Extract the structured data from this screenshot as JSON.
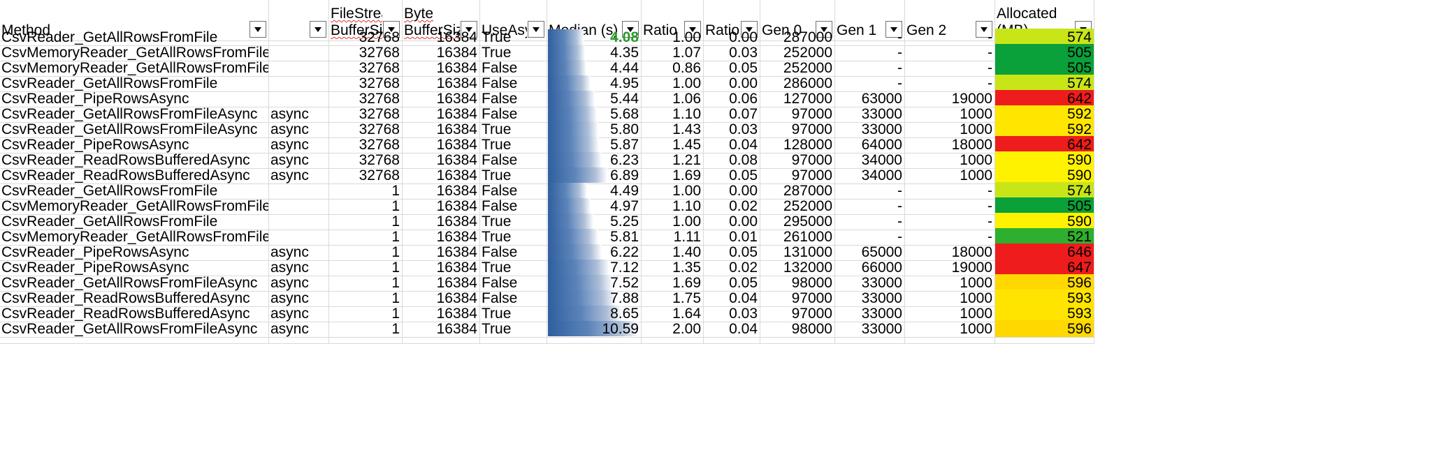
{
  "headers": [
    {
      "label": "Method"
    },
    {
      "label": ""
    },
    {
      "label": "FileStream BufferSize"
    },
    {
      "label": "Byte BufferSize"
    },
    {
      "label": "UseAsync"
    },
    {
      "label": "Median (s)"
    },
    {
      "label": "Ratio"
    },
    {
      "label": "RatioSD"
    },
    {
      "label": "Gen 0"
    },
    {
      "label": "Gen 1"
    },
    {
      "label": "Gen 2"
    },
    {
      "label": "Allocated  (MB)"
    }
  ],
  "rows": [
    {
      "method": "CsvReader_GetAllRowsFromFile",
      "kind": "",
      "fs": "32768",
      "byte": "16384",
      "useAsync": "True",
      "median": "4.08",
      "ratio": "1.00",
      "ratioSD": "0.00",
      "gen0": "287000",
      "gen1": "-",
      "gen2": "-",
      "alloc": "574",
      "allocColor": "#c8e617",
      "medianBar": 0.38,
      "medianBest": true
    },
    {
      "method": "CsvMemoryReader_GetAllRowsFromFile",
      "kind": "",
      "fs": "32768",
      "byte": "16384",
      "useAsync": "True",
      "median": "4.35",
      "ratio": "1.07",
      "ratioSD": "0.03",
      "gen0": "252000",
      "gen1": "-",
      "gen2": "-",
      "alloc": "505",
      "allocColor": "#0aa03a",
      "medianBar": 0.4
    },
    {
      "method": "CsvMemoryReader_GetAllRowsFromFile",
      "kind": "",
      "fs": "32768",
      "byte": "16384",
      "useAsync": "False",
      "median": "4.44",
      "ratio": "0.86",
      "ratioSD": "0.05",
      "gen0": "252000",
      "gen1": "-",
      "gen2": "-",
      "alloc": "505",
      "allocColor": "#0aa03a",
      "medianBar": 0.41
    },
    {
      "method": "CsvReader_GetAllRowsFromFile",
      "kind": "",
      "fs": "32768",
      "byte": "16384",
      "useAsync": "False",
      "median": "4.95",
      "ratio": "1.00",
      "ratioSD": "0.00",
      "gen0": "286000",
      "gen1": "-",
      "gen2": "-",
      "alloc": "574",
      "allocColor": "#c8e617",
      "medianBar": 0.46
    },
    {
      "method": "CsvReader_PipeRowsAsync",
      "kind": "",
      "fs": "32768",
      "byte": "16384",
      "useAsync": "False",
      "median": "5.44",
      "ratio": "1.06",
      "ratioSD": "0.06",
      "gen0": "127000",
      "gen1": "63000",
      "gen2": "19000",
      "alloc": "642",
      "allocColor": "#ee1c1c",
      "medianBar": 0.5
    },
    {
      "method": "CsvReader_GetAllRowsFromFileAsync",
      "kind": "async",
      "fs": "32768",
      "byte": "16384",
      "useAsync": "False",
      "median": "5.68",
      "ratio": "1.10",
      "ratioSD": "0.07",
      "gen0": "97000",
      "gen1": "33000",
      "gen2": "1000",
      "alloc": "592",
      "allocColor": "#ffe600",
      "medianBar": 0.53
    },
    {
      "method": "CsvReader_GetAllRowsFromFileAsync",
      "kind": "async",
      "fs": "32768",
      "byte": "16384",
      "useAsync": "True",
      "median": "5.80",
      "ratio": "1.43",
      "ratioSD": "0.03",
      "gen0": "97000",
      "gen1": "33000",
      "gen2": "1000",
      "alloc": "592",
      "allocColor": "#ffe600",
      "medianBar": 0.54
    },
    {
      "method": "CsvReader_PipeRowsAsync",
      "kind": "async",
      "fs": "32768",
      "byte": "16384",
      "useAsync": "True",
      "median": "5.87",
      "ratio": "1.45",
      "ratioSD": "0.04",
      "gen0": "128000",
      "gen1": "64000",
      "gen2": "18000",
      "alloc": "642",
      "allocColor": "#ee1c1c",
      "medianBar": 0.55
    },
    {
      "method": "CsvReader_ReadRowsBufferedAsync",
      "kind": "async",
      "fs": "32768",
      "byte": "16384",
      "useAsync": "False",
      "median": "6.23",
      "ratio": "1.21",
      "ratioSD": "0.08",
      "gen0": "97000",
      "gen1": "34000",
      "gen2": "1000",
      "alloc": "590",
      "allocColor": "#fff200",
      "medianBar": 0.58
    },
    {
      "method": "CsvReader_ReadRowsBufferedAsync",
      "kind": "async",
      "fs": "32768",
      "byte": "16384",
      "useAsync": "True",
      "median": "6.89",
      "ratio": "1.69",
      "ratioSD": "0.05",
      "gen0": "97000",
      "gen1": "34000",
      "gen2": "1000",
      "alloc": "590",
      "allocColor": "#fff200",
      "medianBar": 0.64
    },
    {
      "method": "CsvReader_GetAllRowsFromFile",
      "kind": "",
      "fs": "1",
      "byte": "16384",
      "useAsync": "False",
      "median": "4.49",
      "ratio": "1.00",
      "ratioSD": "0.00",
      "gen0": "287000",
      "gen1": "-",
      "gen2": "-",
      "alloc": "574",
      "allocColor": "#c8e617",
      "medianBar": 0.42
    },
    {
      "method": "CsvMemoryReader_GetAllRowsFromFile",
      "kind": "",
      "fs": "1",
      "byte": "16384",
      "useAsync": "False",
      "median": "4.97",
      "ratio": "1.10",
      "ratioSD": "0.02",
      "gen0": "252000",
      "gen1": "-",
      "gen2": "-",
      "alloc": "505",
      "allocColor": "#0aa03a",
      "medianBar": 0.46
    },
    {
      "method": "CsvReader_GetAllRowsFromFile",
      "kind": "",
      "fs": "1",
      "byte": "16384",
      "useAsync": "True",
      "median": "5.25",
      "ratio": "1.00",
      "ratioSD": "0.00",
      "gen0": "295000",
      "gen1": "-",
      "gen2": "-",
      "alloc": "590",
      "allocColor": "#fff200",
      "medianBar": 0.49
    },
    {
      "method": "CsvMemoryReader_GetAllRowsFromFile",
      "kind": "",
      "fs": "1",
      "byte": "16384",
      "useAsync": "True",
      "median": "5.81",
      "ratio": "1.11",
      "ratioSD": "0.01",
      "gen0": "261000",
      "gen1": "-",
      "gen2": "-",
      "alloc": "521",
      "allocColor": "#2faf2f",
      "medianBar": 0.54
    },
    {
      "method": "CsvReader_PipeRowsAsync",
      "kind": "async",
      "fs": "1",
      "byte": "16384",
      "useAsync": "False",
      "median": "6.22",
      "ratio": "1.40",
      "ratioSD": "0.05",
      "gen0": "131000",
      "gen1": "65000",
      "gen2": "18000",
      "alloc": "646",
      "allocColor": "#ee1c1c",
      "medianBar": 0.58
    },
    {
      "method": "CsvReader_PipeRowsAsync",
      "kind": "async",
      "fs": "1",
      "byte": "16384",
      "useAsync": "True",
      "median": "7.12",
      "ratio": "1.35",
      "ratioSD": "0.02",
      "gen0": "132000",
      "gen1": "66000",
      "gen2": "19000",
      "alloc": "647",
      "allocColor": "#ee1c1c",
      "medianBar": 0.66
    },
    {
      "method": "CsvReader_GetAllRowsFromFileAsync",
      "kind": "async",
      "fs": "1",
      "byte": "16384",
      "useAsync": "False",
      "median": "7.52",
      "ratio": "1.69",
      "ratioSD": "0.05",
      "gen0": "98000",
      "gen1": "33000",
      "gen2": "1000",
      "alloc": "596",
      "allocColor": "#ffd800",
      "medianBar": 0.7
    },
    {
      "method": "CsvReader_ReadRowsBufferedAsync",
      "kind": "async",
      "fs": "1",
      "byte": "16384",
      "useAsync": "False",
      "median": "7.88",
      "ratio": "1.75",
      "ratioSD": "0.04",
      "gen0": "97000",
      "gen1": "33000",
      "gen2": "1000",
      "alloc": "593",
      "allocColor": "#ffe400",
      "medianBar": 0.73
    },
    {
      "method": "CsvReader_ReadRowsBufferedAsync",
      "kind": "async",
      "fs": "1",
      "byte": "16384",
      "useAsync": "True",
      "median": "8.65",
      "ratio": "1.64",
      "ratioSD": "0.03",
      "gen0": "97000",
      "gen1": "33000",
      "gen2": "1000",
      "alloc": "593",
      "allocColor": "#ffe400",
      "medianBar": 0.8
    },
    {
      "method": "CsvReader_GetAllRowsFromFileAsync",
      "kind": "async",
      "fs": "1",
      "byte": "16384",
      "useAsync": "True",
      "median": "10.59",
      "ratio": "2.00",
      "ratioSD": "0.04",
      "gen0": "98000",
      "gen1": "33000",
      "gen2": "1000",
      "alloc": "596",
      "allocColor": "#ffd800",
      "medianBar": 0.98
    }
  ]
}
